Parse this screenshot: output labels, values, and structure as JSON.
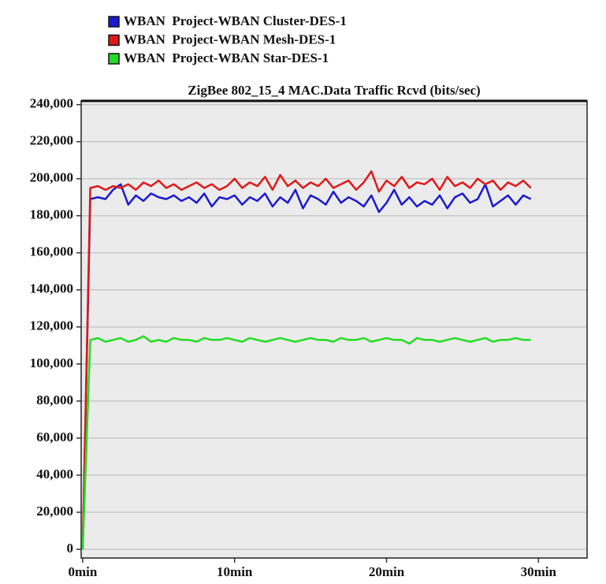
{
  "chart_data": {
    "type": "line",
    "title": "ZigBee 802_15_4 MAC.Data Traffic Rcvd (bits/sec)",
    "x": [
      0,
      0.5,
      1,
      1.5,
      2,
      2.5,
      3,
      3.5,
      4,
      4.5,
      5,
      5.5,
      6,
      6.5,
      7,
      7.5,
      8,
      8.5,
      9,
      9.5,
      10,
      10.5,
      11,
      11.5,
      12,
      12.5,
      13,
      13.5,
      14,
      14.5,
      15,
      15.5,
      16,
      16.5,
      17,
      17.5,
      18,
      18.5,
      19,
      19.5,
      20,
      20.5,
      21,
      21.5,
      22,
      22.5,
      23,
      23.5,
      24,
      24.5,
      25,
      25.5,
      26,
      26.5,
      27,
      27.5,
      28,
      28.5,
      29,
      29.5
    ],
    "series": [
      {
        "name": "WBAN  Project-WBAN Cluster-DES-1",
        "color": "#1a1ad0",
        "values": [
          0,
          189000,
          190000,
          189000,
          194000,
          197000,
          186000,
          191000,
          188000,
          192000,
          190000,
          189000,
          191000,
          188000,
          190000,
          187000,
          192000,
          185000,
          190000,
          189000,
          191000,
          186000,
          190000,
          188000,
          192000,
          185000,
          190000,
          187000,
          194000,
          184000,
          191000,
          189000,
          186000,
          193000,
          187000,
          190000,
          188000,
          185000,
          191000,
          182000,
          187000,
          194000,
          186000,
          190000,
          185000,
          188000,
          186000,
          191000,
          184000,
          190000,
          192000,
          187000,
          189000,
          197000,
          185000,
          188000,
          191000,
          186000,
          191000,
          189000
        ]
      },
      {
        "name": "WBAN  Project-WBAN Mesh-DES-1",
        "color": "#e01818",
        "values": [
          0,
          195000,
          196000,
          194000,
          196000,
          195000,
          197000,
          194000,
          198000,
          196000,
          199000,
          195000,
          197000,
          194000,
          196000,
          198000,
          195000,
          197000,
          194000,
          196000,
          200000,
          195000,
          198000,
          196000,
          201000,
          194000,
          202000,
          196000,
          199000,
          195000,
          198000,
          196000,
          200000,
          195000,
          197000,
          199000,
          194000,
          198000,
          204000,
          193000,
          199000,
          196000,
          201000,
          195000,
          198000,
          197000,
          200000,
          194000,
          201000,
          196000,
          198000,
          195000,
          200000,
          197000,
          199000,
          194000,
          198000,
          196000,
          199000,
          195000
        ]
      },
      {
        "name": "WBAN  Project-WBAN Star-DES-1",
        "color": "#22dd22",
        "values": [
          0,
          113000,
          114000,
          112000,
          113000,
          114000,
          112000,
          113000,
          115000,
          112000,
          113000,
          112000,
          114000,
          113000,
          113000,
          112000,
          114000,
          113000,
          113000,
          114000,
          113000,
          112000,
          114000,
          113000,
          112000,
          113000,
          114000,
          113000,
          112000,
          113000,
          114000,
          113000,
          113000,
          112000,
          114000,
          113000,
          113000,
          114000,
          112000,
          113000,
          114000,
          113000,
          113000,
          111000,
          114000,
          113000,
          113000,
          112000,
          113000,
          114000,
          113000,
          112000,
          113000,
          114000,
          112000,
          113000,
          113000,
          114000,
          113000,
          113000
        ]
      }
    ],
    "xlim": [
      -0.1,
      33.2
    ],
    "ylim": [
      -4700,
      242000
    ],
    "xticks": [
      {
        "value": 0,
        "label": "0min"
      },
      {
        "value": 10,
        "label": "10min"
      },
      {
        "value": 20,
        "label": "20min"
      },
      {
        "value": 30,
        "label": "30min"
      }
    ],
    "yticks": [
      {
        "value": 0,
        "label": "0"
      },
      {
        "value": 20000,
        "label": "20,000"
      },
      {
        "value": 40000,
        "label": "40,000"
      },
      {
        "value": 60000,
        "label": "60,000"
      },
      {
        "value": 80000,
        "label": "80,000"
      },
      {
        "value": 100000,
        "label": "100,000"
      },
      {
        "value": 120000,
        "label": "120,000"
      },
      {
        "value": 140000,
        "label": "140,000"
      },
      {
        "value": 160000,
        "label": "160,000"
      },
      {
        "value": 180000,
        "label": "180,000"
      },
      {
        "value": 200000,
        "label": "200,000"
      },
      {
        "value": 220000,
        "label": "220,000"
      },
      {
        "value": 240000,
        "label": "240,000"
      }
    ],
    "grid": true
  }
}
